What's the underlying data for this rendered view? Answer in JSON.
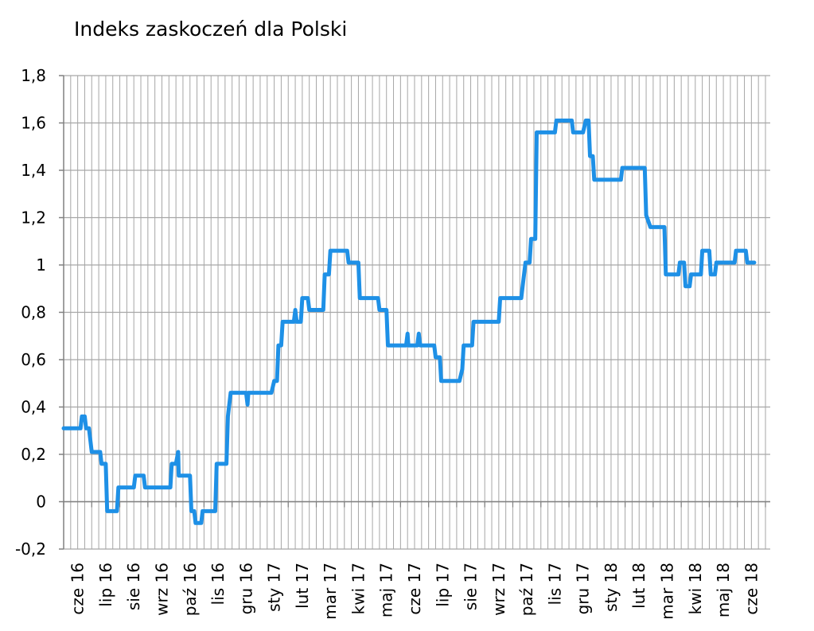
{
  "chart_data": {
    "type": "line",
    "title": "Indeks zaskoczeń dla Polski",
    "xlabel": "",
    "ylabel": "",
    "ylim": [
      -0.2,
      1.8
    ],
    "y_ticks": [
      {
        "value": -0.2,
        "label": "-0,2"
      },
      {
        "value": 0,
        "label": "0"
      },
      {
        "value": 0.2,
        "label": "0,2"
      },
      {
        "value": 0.4,
        "label": "0,4"
      },
      {
        "value": 0.6,
        "label": "0,6"
      },
      {
        "value": 0.8,
        "label": "0,8"
      },
      {
        "value": 1,
        "label": "1"
      },
      {
        "value": 1.2,
        "label": "1,2"
      },
      {
        "value": 1.4,
        "label": "1,4"
      },
      {
        "value": 1.6,
        "label": "1,6"
      },
      {
        "value": 1.8,
        "label": "1,8"
      }
    ],
    "categories": [
      "cze 16",
      "lip 16",
      "sie 16",
      "wrz 16",
      "paź 16",
      "lis 16",
      "gru 16",
      "sty 17",
      "lut 17",
      "mar 17",
      "kwi 17",
      "maj 17",
      "cze 17",
      "lip 17",
      "sie 17",
      "wrz 17",
      "paź 17",
      "lis 17",
      "gru 17",
      "sty 18",
      "lut 18",
      "mar 18",
      "kwi 18",
      "maj 18",
      "cze 18"
    ],
    "grid": {
      "horizontal": true,
      "vertical": true
    },
    "colors": {
      "line": "#1e90e6",
      "grid": "#a6a6a6",
      "axis": "#808080"
    },
    "series": [
      {
        "values": [
          [
            0.0,
            0.31
          ],
          [
            0.6,
            0.31
          ],
          [
            0.65,
            0.36
          ],
          [
            0.75,
            0.36
          ],
          [
            0.8,
            0.31
          ],
          [
            0.9,
            0.31
          ],
          [
            1.0,
            0.21
          ],
          [
            1.3,
            0.21
          ],
          [
            1.35,
            0.16
          ],
          [
            1.5,
            0.16
          ],
          [
            1.55,
            -0.04
          ],
          [
            1.9,
            -0.04
          ],
          [
            1.95,
            0.06
          ],
          [
            2.5,
            0.06
          ],
          [
            2.55,
            0.11
          ],
          [
            2.85,
            0.11
          ],
          [
            2.9,
            0.06
          ],
          [
            3.8,
            0.06
          ],
          [
            3.85,
            0.16
          ],
          [
            4.0,
            0.16
          ],
          [
            4.08,
            0.21
          ],
          [
            4.1,
            0.11
          ],
          [
            4.5,
            0.11
          ],
          [
            4.55,
            -0.04
          ],
          [
            4.65,
            -0.04
          ],
          [
            4.7,
            -0.09
          ],
          [
            4.9,
            -0.09
          ],
          [
            4.95,
            -0.04
          ],
          [
            5.4,
            -0.04
          ],
          [
            5.45,
            0.16
          ],
          [
            5.8,
            0.16
          ],
          [
            5.85,
            0.36
          ],
          [
            5.95,
            0.46
          ],
          [
            6.5,
            0.46
          ],
          [
            6.55,
            0.41
          ],
          [
            6.58,
            0.46
          ],
          [
            7.4,
            0.46
          ],
          [
            7.5,
            0.51
          ],
          [
            7.6,
            0.51
          ],
          [
            7.65,
            0.66
          ],
          [
            7.75,
            0.66
          ],
          [
            7.8,
            0.76
          ],
          [
            8.2,
            0.76
          ],
          [
            8.25,
            0.81
          ],
          [
            8.3,
            0.76
          ],
          [
            8.45,
            0.76
          ],
          [
            8.5,
            0.86
          ],
          [
            8.7,
            0.86
          ],
          [
            8.75,
            0.81
          ],
          [
            9.25,
            0.81
          ],
          [
            9.3,
            0.96
          ],
          [
            9.45,
            0.96
          ],
          [
            9.5,
            1.06
          ],
          [
            10.1,
            1.06
          ],
          [
            10.15,
            1.01
          ],
          [
            10.5,
            1.01
          ],
          [
            10.55,
            0.86
          ],
          [
            11.2,
            0.86
          ],
          [
            11.25,
            0.81
          ],
          [
            11.5,
            0.81
          ],
          [
            11.55,
            0.66
          ],
          [
            12.2,
            0.66
          ],
          [
            12.25,
            0.71
          ],
          [
            12.28,
            0.66
          ],
          [
            12.6,
            0.66
          ],
          [
            12.65,
            0.71
          ],
          [
            12.7,
            0.66
          ],
          [
            13.2,
            0.66
          ],
          [
            13.25,
            0.61
          ],
          [
            13.4,
            0.61
          ],
          [
            13.45,
            0.51
          ],
          [
            14.1,
            0.51
          ],
          [
            14.2,
            0.56
          ],
          [
            14.25,
            0.66
          ],
          [
            14.55,
            0.66
          ],
          [
            14.6,
            0.76
          ],
          [
            15.5,
            0.76
          ],
          [
            15.55,
            0.86
          ],
          [
            16.3,
            0.86
          ],
          [
            16.35,
            0.91
          ],
          [
            16.45,
            1.01
          ],
          [
            16.6,
            1.01
          ],
          [
            16.65,
            1.11
          ],
          [
            16.8,
            1.11
          ],
          [
            16.85,
            1.56
          ],
          [
            17.5,
            1.56
          ],
          [
            17.55,
            1.61
          ],
          [
            18.1,
            1.61
          ],
          [
            18.15,
            1.56
          ],
          [
            18.5,
            1.56
          ],
          [
            18.6,
            1.61
          ],
          [
            18.7,
            1.61
          ],
          [
            18.75,
            1.46
          ],
          [
            18.85,
            1.46
          ],
          [
            18.9,
            1.36
          ],
          [
            19.85,
            1.36
          ],
          [
            19.9,
            1.41
          ],
          [
            20.7,
            1.41
          ],
          [
            20.75,
            1.21
          ],
          [
            20.9,
            1.16
          ],
          [
            21.4,
            1.16
          ],
          [
            21.45,
            0.96
          ],
          [
            21.9,
            0.96
          ],
          [
            21.95,
            1.01
          ],
          [
            22.1,
            1.01
          ],
          [
            22.15,
            0.91
          ],
          [
            22.3,
            0.91
          ],
          [
            22.35,
            0.96
          ],
          [
            22.7,
            0.96
          ],
          [
            22.75,
            1.06
          ],
          [
            23.0,
            1.06
          ],
          [
            23.05,
            0.96
          ],
          [
            23.2,
            0.96
          ],
          [
            23.25,
            1.01
          ],
          [
            23.9,
            1.01
          ],
          [
            23.95,
            1.06
          ],
          [
            24.3,
            1.06
          ],
          [
            24.35,
            1.01
          ],
          [
            24.6,
            1.01
          ]
        ]
      }
    ]
  }
}
